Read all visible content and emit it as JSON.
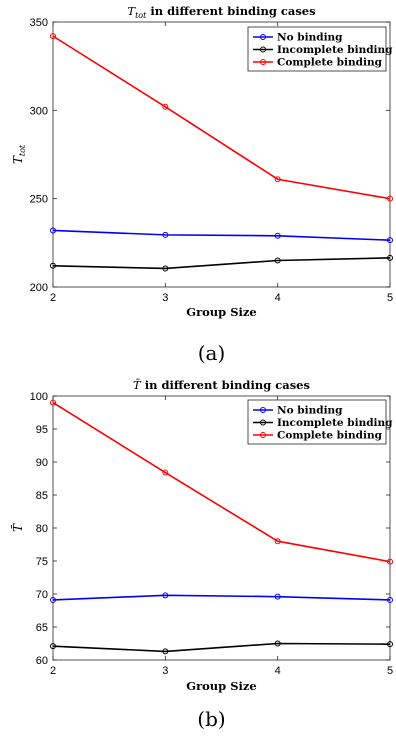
{
  "chart_data": [
    {
      "type": "line",
      "title": "T_tot in different binding cases",
      "xlabel": "Group Size",
      "ylabel": "T_tot",
      "x": [
        2,
        3,
        4,
        5
      ],
      "xlim": [
        2,
        5
      ],
      "ylim": [
        200,
        350
      ],
      "xticks": [
        2,
        3,
        4,
        5
      ],
      "yticks": [
        200,
        250,
        300,
        350
      ],
      "legend_position": "top-right",
      "grid": false,
      "series": [
        {
          "name": "No binding",
          "color": "#0000ff",
          "values": [
            232,
            229.5,
            229,
            226.5
          ]
        },
        {
          "name": "Incomplete binding",
          "color": "#000000",
          "values": [
            212,
            210.5,
            215,
            216.5
          ]
        },
        {
          "name": "Complete binding",
          "color": "#ff0000",
          "values": [
            342,
            302,
            261,
            250
          ]
        }
      ],
      "caption": "(a)"
    },
    {
      "type": "line",
      "title": "T̄ in different binding cases",
      "xlabel": "Group Size",
      "ylabel": "T̄",
      "x": [
        2,
        3,
        4,
        5
      ],
      "xlim": [
        2,
        5
      ],
      "ylim": [
        60,
        100
      ],
      "xticks": [
        2,
        3,
        4,
        5
      ],
      "yticks": [
        60,
        65,
        70,
        75,
        80,
        85,
        90,
        95,
        100
      ],
      "legend_position": "top-right",
      "grid": false,
      "series": [
        {
          "name": "No binding",
          "color": "#0000ff",
          "values": [
            69.1,
            69.8,
            69.6,
            69.1
          ]
        },
        {
          "name": "Incomplete binding",
          "color": "#000000",
          "values": [
            62.1,
            61.3,
            62.5,
            62.4
          ]
        },
        {
          "name": "Complete binding",
          "color": "#ff0000",
          "values": [
            99,
            88.4,
            78,
            74.9
          ]
        }
      ],
      "caption": "(b)"
    }
  ]
}
